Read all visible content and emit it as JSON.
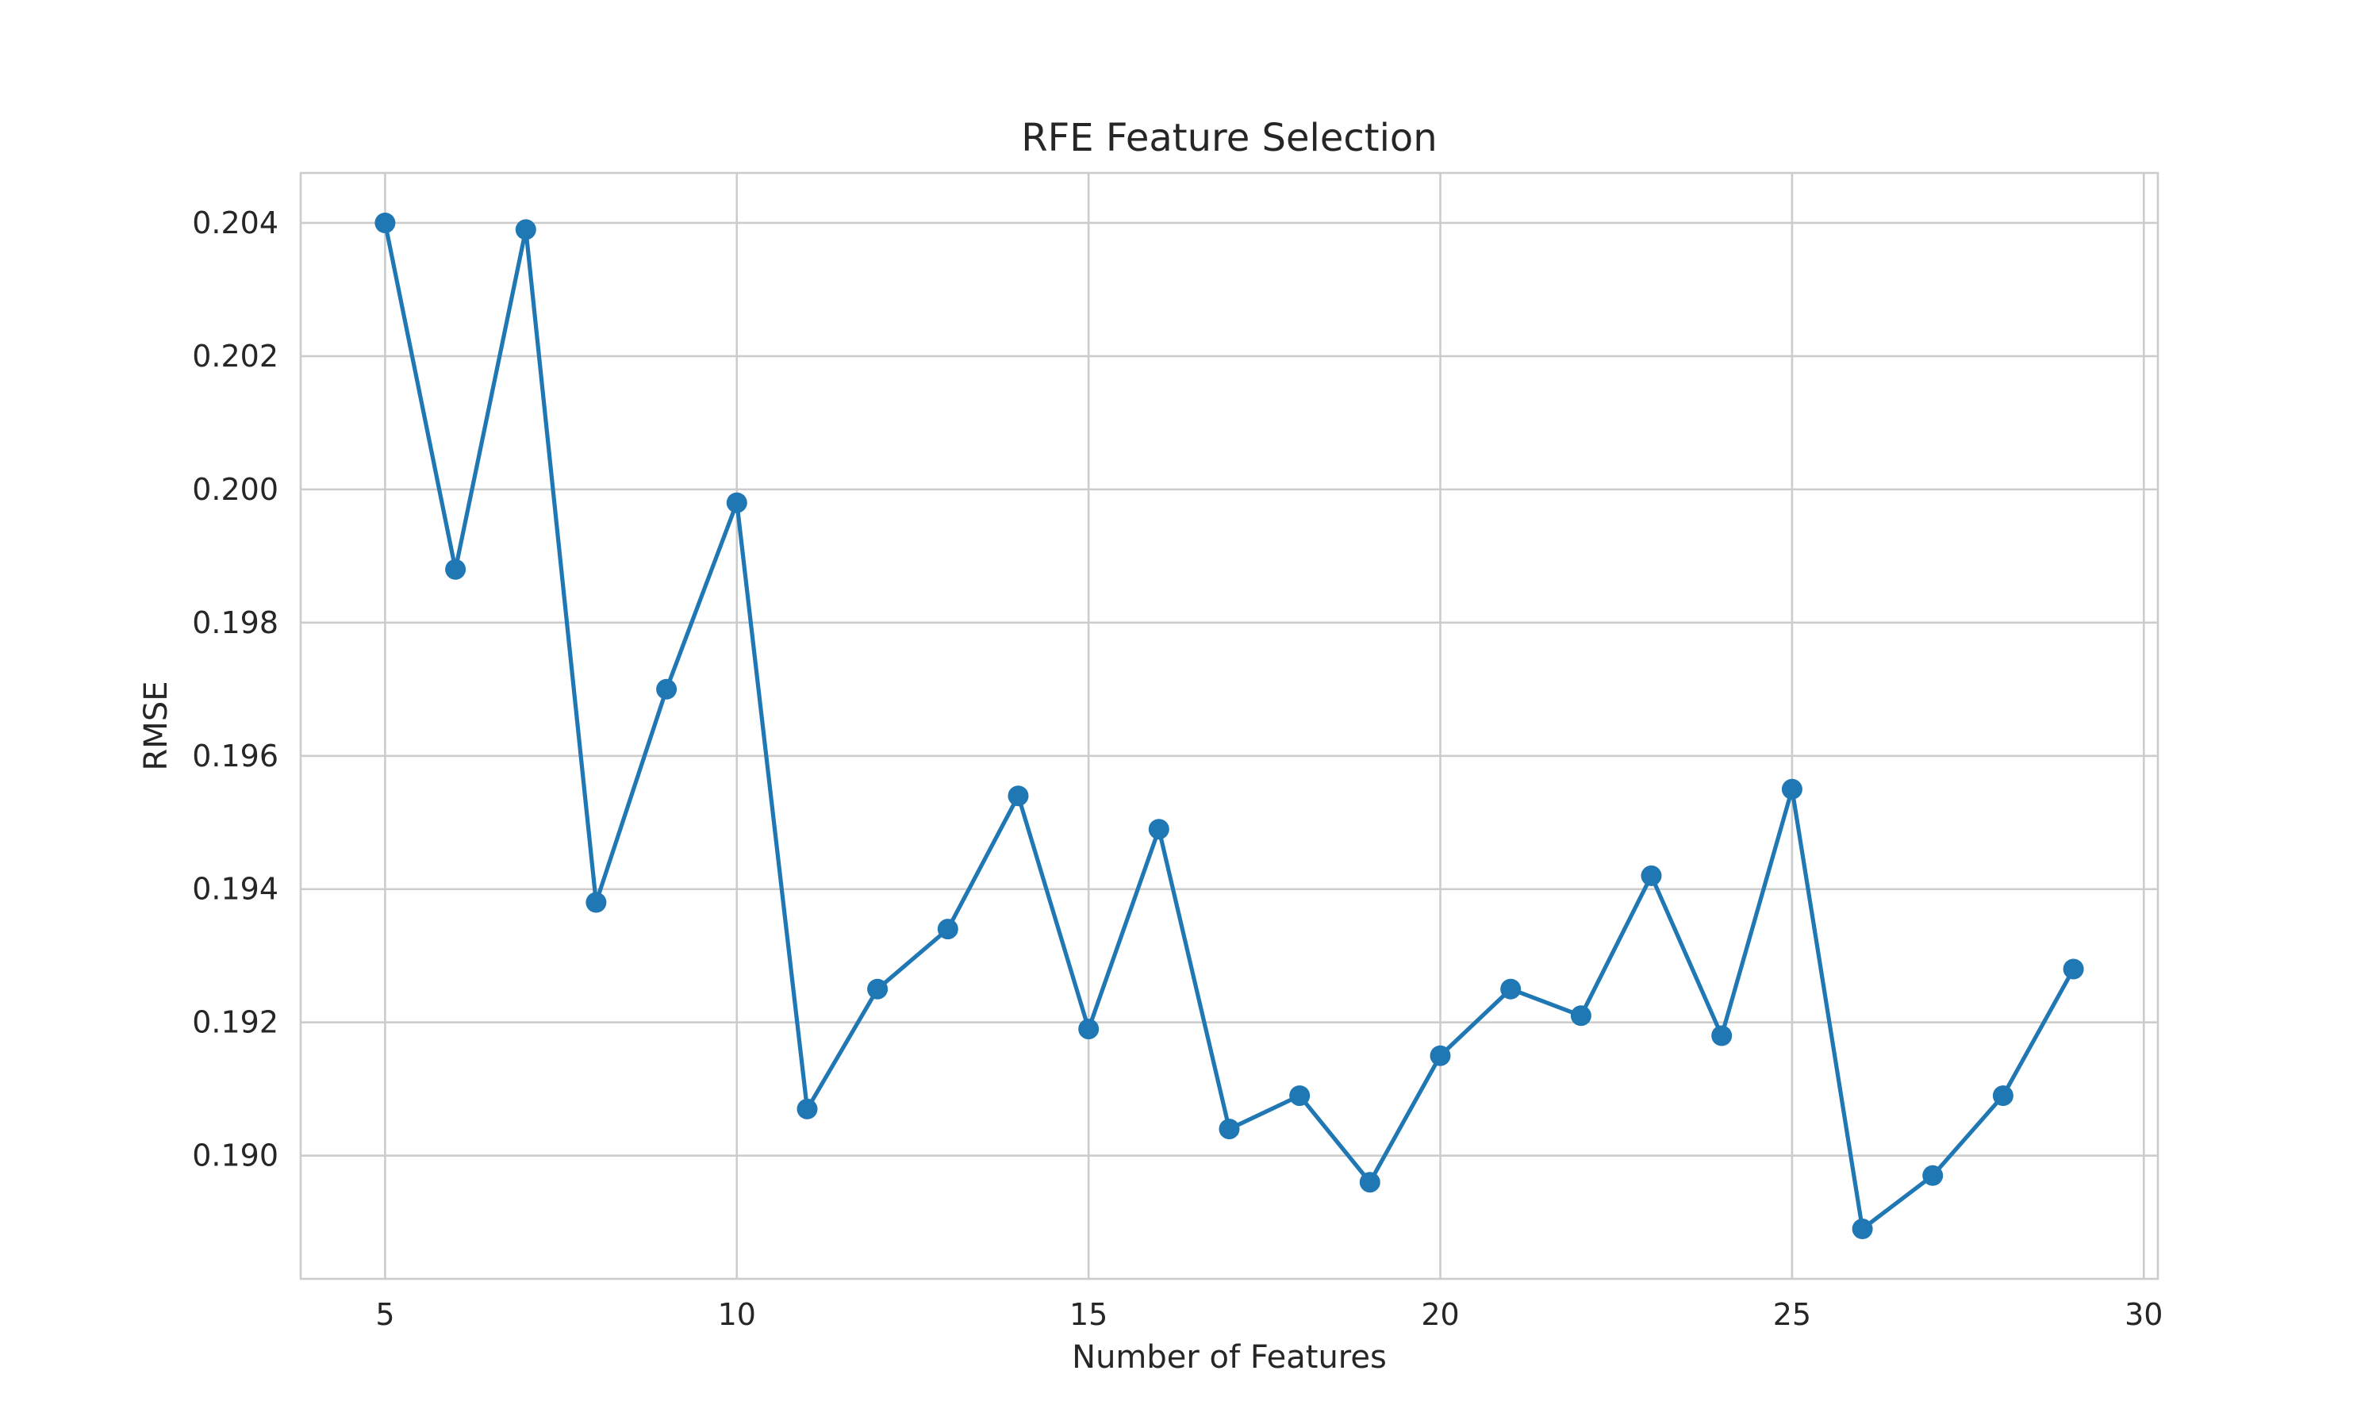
{
  "chart_data": {
    "type": "line",
    "title": "RFE Feature Selection",
    "xlabel": "Number of Features",
    "ylabel": "RMSE",
    "x": [
      5,
      6,
      7,
      8,
      9,
      10,
      11,
      12,
      13,
      14,
      15,
      16,
      17,
      18,
      19,
      20,
      21,
      22,
      23,
      24,
      25,
      26,
      27,
      28,
      29
    ],
    "series": [
      {
        "values": [
          0.204,
          0.1988,
          0.2039,
          0.1938,
          0.197,
          0.1998,
          0.1907,
          0.1925,
          0.1934,
          0.1954,
          0.1919,
          0.1949,
          0.1904,
          0.1909,
          0.1896,
          0.1915,
          0.1925,
          0.1921,
          0.1942,
          0.1918,
          0.1955,
          0.1889,
          0.1897,
          0.1909,
          0.1928
        ],
        "color": "#1f77b4",
        "marker": "circle"
      }
    ],
    "xlim": [
      3.8,
      30.2
    ],
    "ylim": [
      0.18815,
      0.20475
    ],
    "xticks": [
      5,
      10,
      15,
      20,
      25,
      30
    ],
    "xtick_labels": [
      "5",
      "10",
      "15",
      "20",
      "25",
      "30"
    ],
    "yticks": [
      0.19,
      0.192,
      0.194,
      0.196,
      0.198,
      0.2,
      0.202,
      0.204
    ],
    "ytick_labels": [
      "0.190",
      "0.192",
      "0.194",
      "0.196",
      "0.198",
      "0.200",
      "0.202",
      "0.204"
    ],
    "grid": true,
    "legend": "none"
  }
}
